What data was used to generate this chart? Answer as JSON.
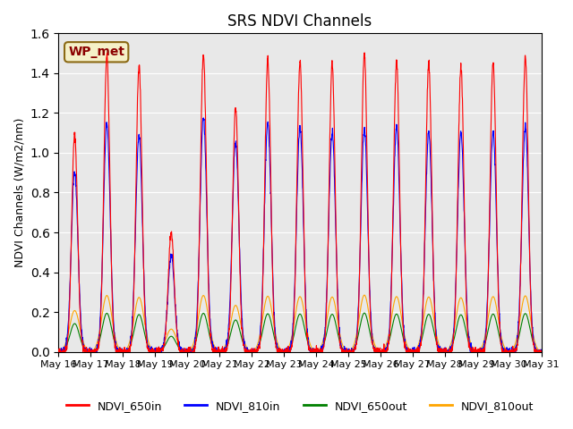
{
  "title": "SRS NDVI Channels",
  "ylabel": "NDVI Channels (W/m2/nm)",
  "annotation": "WP_met",
  "ylim": [
    0,
    1.6
  ],
  "background_color": "#e8e8e8",
  "legend": [
    "NDVI_650in",
    "NDVI_810in",
    "NDVI_650out",
    "NDVI_810out"
  ],
  "legend_colors": [
    "red",
    "blue",
    "green",
    "orange"
  ],
  "xtick_labels": [
    "May 16",
    "May 17",
    "May 18",
    "May 19",
    "May 20",
    "May 21",
    "May 22",
    "May 23",
    "May 24",
    "May 25",
    "May 26",
    "May 27",
    "May 28",
    "May 29",
    "May 30",
    "May 31"
  ],
  "num_days": 15,
  "start_day": 16,
  "day_amps_red": [
    1.09,
    1.49,
    1.44,
    0.6,
    1.49,
    1.23,
    1.47,
    1.46,
    1.45,
    1.5,
    1.46,
    1.45,
    1.43,
    1.46,
    1.48
  ],
  "day_amps_blue": [
    0.9,
    1.15,
    1.09,
    0.48,
    1.18,
    1.05,
    1.15,
    1.13,
    1.1,
    1.12,
    1.13,
    1.1,
    1.1,
    1.1,
    1.13
  ]
}
